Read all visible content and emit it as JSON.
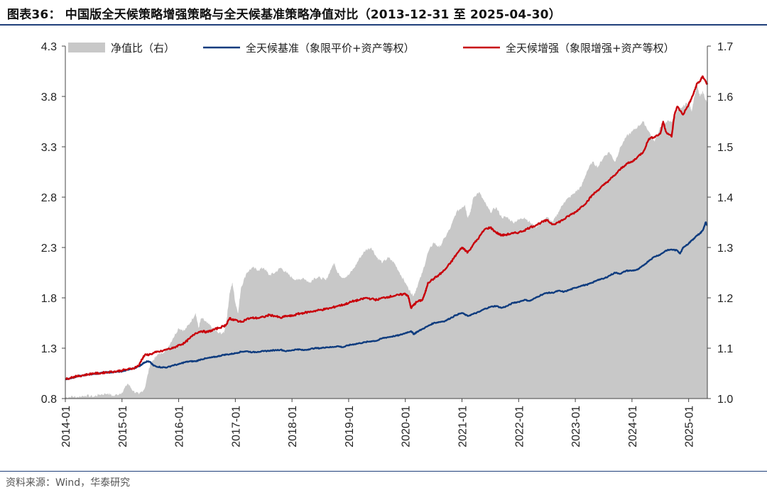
{
  "header": {
    "title": "图表36：  中国版全天候策略增强策略与全天候基准策略净值对比（2013-12-31 至 2025-04-30）"
  },
  "footer": {
    "source": "资料来源：Wind，华泰研究"
  },
  "colors": {
    "ratio_area": "#c8c8c8",
    "benchmark": "#0d3b7e",
    "enhanced": "#c8000a",
    "rule": "#1f3f7a"
  },
  "chart_data": {
    "type": "line",
    "x_ticks": [
      "2014-01",
      "2015-01",
      "2016-01",
      "2017-01",
      "2018-01",
      "2019-01",
      "2020-01",
      "2021-01",
      "2022-01",
      "2023-01",
      "2024-01",
      "2025-01"
    ],
    "y_left": {
      "lim": [
        0.8,
        4.3
      ],
      "ticks": [
        "0.8",
        "1.3",
        "1.8",
        "2.3",
        "2.8",
        "3.3",
        "3.8",
        "4.3"
      ]
    },
    "y_right": {
      "lim": [
        1.0,
        1.7
      ],
      "ticks": [
        "1.0",
        "1.1",
        "1.2",
        "1.3",
        "1.4",
        "1.5",
        "1.6",
        "1.7"
      ]
    },
    "grid": false,
    "legend": "top",
    "x_range": [
      2014.0,
      2025.33
    ],
    "series": [
      {
        "name": "净值比（右）",
        "kind": "area",
        "axis": "right",
        "x": [
          2014.0,
          2014.1,
          2014.2,
          2014.35,
          2014.5,
          2014.6,
          2014.75,
          2014.85,
          2015.0,
          2015.1,
          2015.2,
          2015.3,
          2015.4,
          2015.5,
          2015.55,
          2015.6,
          2015.7,
          2015.8,
          2015.9,
          2016.0,
          2016.1,
          2016.2,
          2016.3,
          2016.35,
          2016.4,
          2016.5,
          2016.6,
          2016.7,
          2016.8,
          2016.85,
          2016.9,
          2016.95,
          2017.0,
          2017.05,
          2017.1,
          2017.2,
          2017.3,
          2017.4,
          2017.5,
          2017.6,
          2017.7,
          2017.8,
          2017.9,
          2018.0,
          2018.1,
          2018.2,
          2018.3,
          2018.4,
          2018.5,
          2018.6,
          2018.7,
          2018.75,
          2018.8,
          2018.9,
          2019.0,
          2019.1,
          2019.2,
          2019.3,
          2019.4,
          2019.5,
          2019.6,
          2019.7,
          2019.8,
          2019.9,
          2020.0,
          2020.05,
          2020.1,
          2020.15,
          2020.2,
          2020.3,
          2020.4,
          2020.5,
          2020.6,
          2020.7,
          2020.8,
          2020.9,
          2021.0,
          2021.05,
          2021.1,
          2021.15,
          2021.2,
          2021.3,
          2021.4,
          2021.5,
          2021.6,
          2021.7,
          2021.8,
          2021.9,
          2022.0,
          2022.1,
          2022.2,
          2022.3,
          2022.4,
          2022.5,
          2022.6,
          2022.7,
          2022.8,
          2022.9,
          2023.0,
          2023.1,
          2023.2,
          2023.3,
          2023.4,
          2023.5,
          2023.6,
          2023.7,
          2023.8,
          2023.9,
          2024.0,
          2024.1,
          2024.2,
          2024.3,
          2024.4,
          2024.5,
          2024.6,
          2024.7,
          2024.75,
          2024.8,
          2024.9,
          2025.0,
          2025.05,
          2025.1,
          2025.15,
          2025.2,
          2025.25,
          2025.33
        ],
        "values": [
          1.002,
          1.004,
          1.003,
          1.006,
          1.004,
          1.008,
          1.01,
          1.005,
          1.012,
          1.03,
          1.015,
          1.008,
          1.02,
          1.07,
          1.075,
          1.085,
          1.09,
          1.1,
          1.12,
          1.14,
          1.135,
          1.15,
          1.17,
          1.14,
          1.16,
          1.15,
          1.14,
          1.13,
          1.13,
          1.16,
          1.21,
          1.23,
          1.19,
          1.17,
          1.22,
          1.25,
          1.26,
          1.255,
          1.26,
          1.245,
          1.25,
          1.26,
          1.25,
          1.24,
          1.235,
          1.24,
          1.23,
          1.24,
          1.24,
          1.235,
          1.26,
          1.27,
          1.25,
          1.24,
          1.245,
          1.26,
          1.28,
          1.295,
          1.3,
          1.28,
          1.27,
          1.28,
          1.27,
          1.25,
          1.23,
          1.22,
          1.21,
          1.205,
          1.22,
          1.25,
          1.29,
          1.31,
          1.3,
          1.32,
          1.34,
          1.37,
          1.38,
          1.385,
          1.36,
          1.37,
          1.4,
          1.41,
          1.39,
          1.37,
          1.38,
          1.36,
          1.36,
          1.35,
          1.355,
          1.36,
          1.35,
          1.34,
          1.35,
          1.36,
          1.35,
          1.37,
          1.39,
          1.4,
          1.41,
          1.42,
          1.45,
          1.47,
          1.46,
          1.48,
          1.49,
          1.47,
          1.5,
          1.52,
          1.53,
          1.54,
          1.55,
          1.53,
          1.51,
          1.54,
          1.55,
          1.55,
          1.56,
          1.57,
          1.58,
          1.59,
          1.57,
          1.6,
          1.62,
          1.6,
          1.61,
          1.585
        ]
      },
      {
        "name": "全天候基准（象限平价+资产等权）",
        "kind": "line",
        "axis": "left",
        "x": [
          2014.0,
          2014.1,
          2014.2,
          2014.3,
          2014.4,
          2014.5,
          2014.6,
          2014.7,
          2014.8,
          2014.9,
          2015.0,
          2015.1,
          2015.2,
          2015.3,
          2015.35,
          2015.4,
          2015.45,
          2015.5,
          2015.55,
          2015.6,
          2015.7,
          2015.8,
          2015.9,
          2016.0,
          2016.1,
          2016.2,
          2016.3,
          2016.4,
          2016.5,
          2016.6,
          2016.7,
          2016.8,
          2016.9,
          2017.0,
          2017.1,
          2017.2,
          2017.3,
          2017.4,
          2017.5,
          2017.6,
          2017.7,
          2017.8,
          2017.9,
          2018.0,
          2018.1,
          2018.2,
          2018.3,
          2018.4,
          2018.5,
          2018.6,
          2018.7,
          2018.8,
          2018.9,
          2019.0,
          2019.1,
          2019.2,
          2019.3,
          2019.4,
          2019.5,
          2019.6,
          2019.7,
          2019.8,
          2019.9,
          2020.0,
          2020.1,
          2020.15,
          2020.2,
          2020.3,
          2020.4,
          2020.5,
          2020.6,
          2020.7,
          2020.8,
          2020.9,
          2021.0,
          2021.1,
          2021.2,
          2021.3,
          2021.4,
          2021.5,
          2021.6,
          2021.7,
          2021.8,
          2021.9,
          2022.0,
          2022.1,
          2022.2,
          2022.3,
          2022.4,
          2022.5,
          2022.6,
          2022.7,
          2022.8,
          2022.9,
          2023.0,
          2023.1,
          2023.2,
          2023.3,
          2023.4,
          2023.5,
          2023.6,
          2023.7,
          2023.8,
          2023.9,
          2024.0,
          2024.1,
          2024.2,
          2024.3,
          2024.4,
          2024.5,
          2024.6,
          2024.7,
          2024.8,
          2024.85,
          2024.9,
          2025.0,
          2025.05,
          2025.1,
          2025.15,
          2025.2,
          2025.25,
          2025.3,
          2025.33
        ],
        "values": [
          0.99,
          1.0,
          1.02,
          1.03,
          1.04,
          1.045,
          1.05,
          1.06,
          1.06,
          1.065,
          1.07,
          1.085,
          1.1,
          1.12,
          1.14,
          1.16,
          1.17,
          1.16,
          1.13,
          1.12,
          1.11,
          1.11,
          1.13,
          1.14,
          1.16,
          1.17,
          1.17,
          1.19,
          1.2,
          1.21,
          1.22,
          1.235,
          1.24,
          1.25,
          1.265,
          1.27,
          1.26,
          1.265,
          1.27,
          1.275,
          1.28,
          1.285,
          1.27,
          1.28,
          1.29,
          1.28,
          1.29,
          1.3,
          1.3,
          1.31,
          1.31,
          1.32,
          1.31,
          1.33,
          1.34,
          1.35,
          1.36,
          1.37,
          1.375,
          1.4,
          1.41,
          1.42,
          1.43,
          1.45,
          1.47,
          1.44,
          1.46,
          1.49,
          1.52,
          1.55,
          1.56,
          1.57,
          1.6,
          1.63,
          1.65,
          1.62,
          1.64,
          1.66,
          1.69,
          1.71,
          1.72,
          1.7,
          1.72,
          1.75,
          1.76,
          1.78,
          1.77,
          1.8,
          1.83,
          1.85,
          1.85,
          1.87,
          1.86,
          1.88,
          1.9,
          1.92,
          1.93,
          1.95,
          1.98,
          1.99,
          2.02,
          2.05,
          2.04,
          2.07,
          2.07,
          2.08,
          2.12,
          2.17,
          2.21,
          2.23,
          2.27,
          2.28,
          2.27,
          2.24,
          2.3,
          2.34,
          2.37,
          2.39,
          2.42,
          2.44,
          2.47,
          2.55,
          2.52
        ]
      },
      {
        "name": "全天候增强（象限增强+资产等权）",
        "kind": "line",
        "axis": "left",
        "x": [
          2014.0,
          2014.1,
          2014.2,
          2014.3,
          2014.4,
          2014.5,
          2014.6,
          2014.7,
          2014.8,
          2014.9,
          2015.0,
          2015.1,
          2015.2,
          2015.3,
          2015.35,
          2015.4,
          2015.5,
          2015.6,
          2015.7,
          2015.8,
          2015.9,
          2016.0,
          2016.1,
          2016.2,
          2016.3,
          2016.4,
          2016.5,
          2016.6,
          2016.7,
          2016.8,
          2016.85,
          2016.9,
          2016.95,
          2017.0,
          2017.1,
          2017.2,
          2017.3,
          2017.4,
          2017.5,
          2017.6,
          2017.7,
          2017.8,
          2017.9,
          2018.0,
          2018.1,
          2018.2,
          2018.3,
          2018.4,
          2018.5,
          2018.6,
          2018.7,
          2018.8,
          2018.9,
          2019.0,
          2019.1,
          2019.2,
          2019.3,
          2019.4,
          2019.5,
          2019.6,
          2019.7,
          2019.8,
          2019.9,
          2020.0,
          2020.05,
          2020.1,
          2020.15,
          2020.2,
          2020.3,
          2020.35,
          2020.4,
          2020.5,
          2020.6,
          2020.7,
          2020.8,
          2020.9,
          2021.0,
          2021.05,
          2021.1,
          2021.2,
          2021.3,
          2021.4,
          2021.5,
          2021.6,
          2021.7,
          2021.8,
          2021.9,
          2022.0,
          2022.1,
          2022.2,
          2022.3,
          2022.4,
          2022.5,
          2022.6,
          2022.7,
          2022.8,
          2022.9,
          2023.0,
          2023.1,
          2023.2,
          2023.3,
          2023.4,
          2023.5,
          2023.6,
          2023.7,
          2023.8,
          2023.9,
          2024.0,
          2024.1,
          2024.2,
          2024.3,
          2024.4,
          2024.5,
          2024.55,
          2024.6,
          2024.7,
          2024.75,
          2024.8,
          2024.9,
          2025.0,
          2025.05,
          2025.1,
          2025.15,
          2025.2,
          2025.25,
          2025.3,
          2025.33
        ],
        "values": [
          0.99,
          1.01,
          1.02,
          1.03,
          1.04,
          1.05,
          1.05,
          1.06,
          1.065,
          1.07,
          1.08,
          1.09,
          1.1,
          1.13,
          1.19,
          1.23,
          1.24,
          1.26,
          1.27,
          1.29,
          1.3,
          1.33,
          1.35,
          1.4,
          1.45,
          1.47,
          1.46,
          1.48,
          1.5,
          1.52,
          1.54,
          1.6,
          1.58,
          1.58,
          1.56,
          1.59,
          1.6,
          1.6,
          1.61,
          1.63,
          1.62,
          1.6,
          1.62,
          1.62,
          1.64,
          1.65,
          1.66,
          1.67,
          1.68,
          1.69,
          1.7,
          1.72,
          1.73,
          1.75,
          1.77,
          1.78,
          1.8,
          1.79,
          1.78,
          1.8,
          1.81,
          1.82,
          1.83,
          1.84,
          1.82,
          1.7,
          1.73,
          1.76,
          1.78,
          1.85,
          1.95,
          1.99,
          2.03,
          2.08,
          2.15,
          2.23,
          2.3,
          2.28,
          2.25,
          2.33,
          2.4,
          2.48,
          2.5,
          2.45,
          2.42,
          2.43,
          2.44,
          2.45,
          2.47,
          2.5,
          2.52,
          2.55,
          2.57,
          2.53,
          2.55,
          2.58,
          2.62,
          2.65,
          2.7,
          2.75,
          2.82,
          2.87,
          2.92,
          2.97,
          3.02,
          3.08,
          3.13,
          3.15,
          3.2,
          3.25,
          3.38,
          3.4,
          3.43,
          3.55,
          3.45,
          3.4,
          3.62,
          3.7,
          3.62,
          3.72,
          3.78,
          3.85,
          3.93,
          3.95,
          4.0,
          3.95,
          3.92
        ]
      }
    ]
  }
}
